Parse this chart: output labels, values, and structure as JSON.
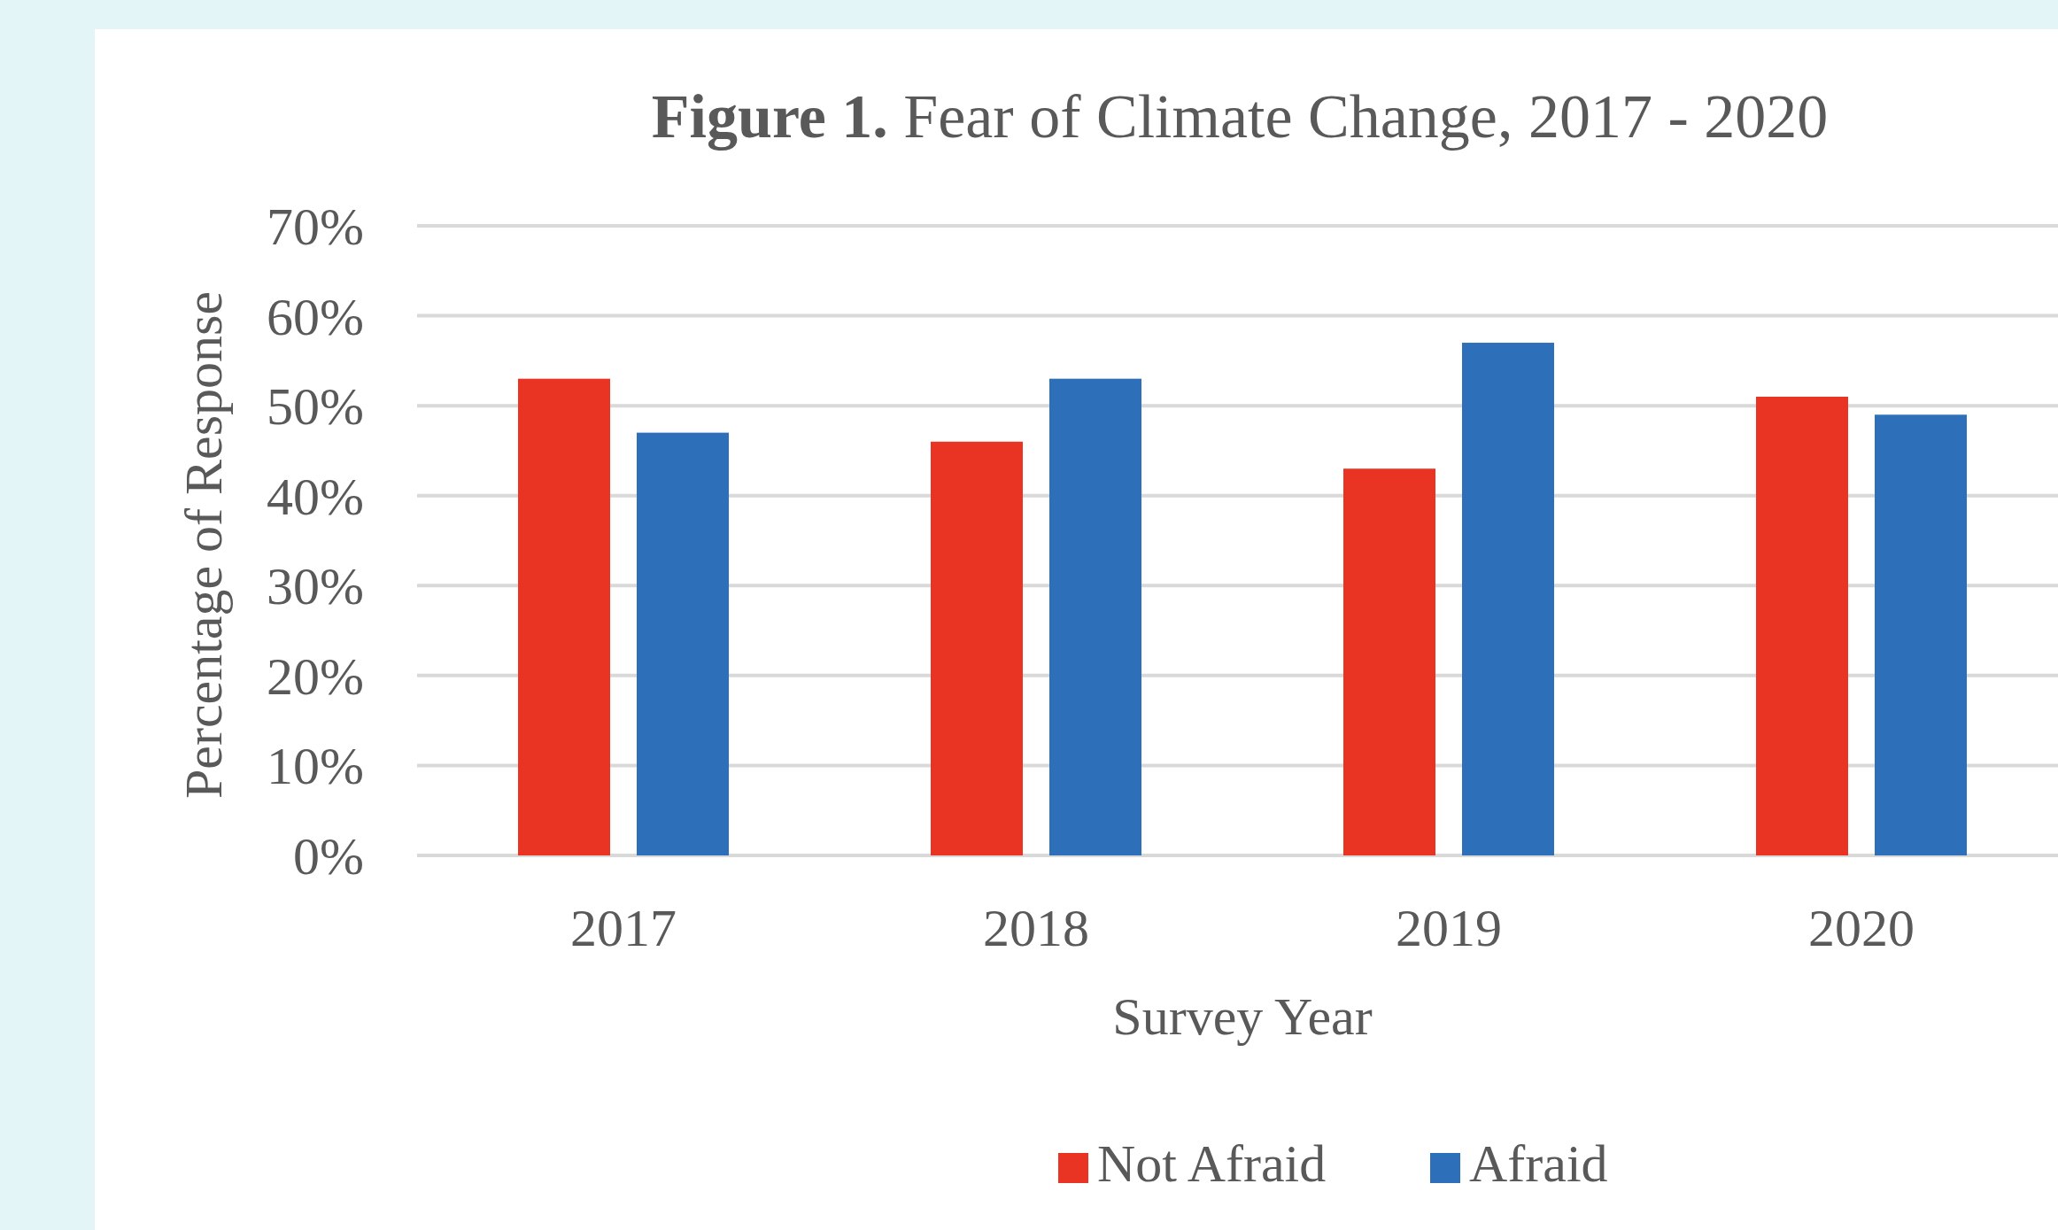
{
  "chart_data": {
    "type": "bar",
    "title": "Figure 1. Fear of Climate Change, 2017 - 2020",
    "xlabel": "Survey Year",
    "ylabel": "Percentage of Response",
    "categories": [
      "2017",
      "2018",
      "2019",
      "2020"
    ],
    "series": [
      {
        "name": "Not Afraid",
        "color": "#e93323",
        "values": [
          53,
          46,
          43,
          51
        ]
      },
      {
        "name": "Afraid",
        "color": "#2e6fba",
        "values": [
          47,
          53,
          57,
          49
        ]
      }
    ],
    "ylim": [
      0,
      70
    ],
    "yticks": [
      {
        "value": 0,
        "label": "0%"
      },
      {
        "value": 10,
        "label": "10%"
      },
      {
        "value": 20,
        "label": "20%"
      },
      {
        "value": 30,
        "label": "30%"
      },
      {
        "value": 40,
        "label": "40%"
      },
      {
        "value": 50,
        "label": "50%"
      },
      {
        "value": 60,
        "label": "60%"
      },
      {
        "value": 70,
        "label": "70%"
      }
    ],
    "grid": "y",
    "legend": "bottom"
  }
}
